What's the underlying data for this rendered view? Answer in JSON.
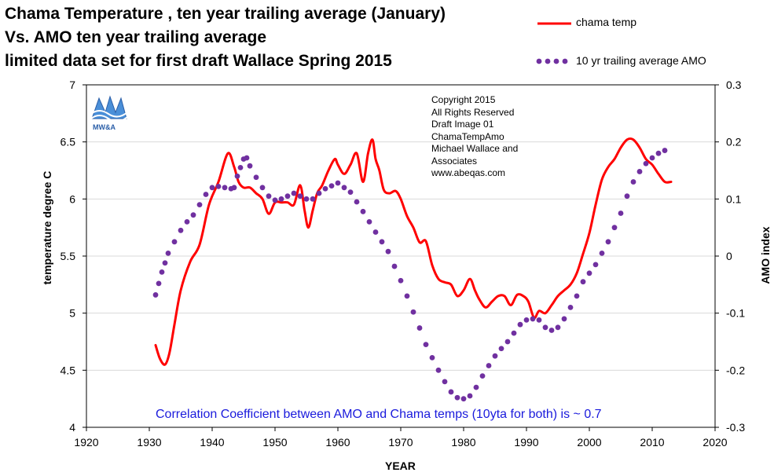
{
  "title": {
    "line1": "Chama Temperature , ten year  trailing average (January)",
    "line2": "Vs. AMO ten year trailing average",
    "line3": "limited data set for first draft   Wallace Spring 2015"
  },
  "legend": {
    "temp_label": "chama temp",
    "amo_label": "10 yr trailing average AMO"
  },
  "copyright": {
    "lines": [
      "Copyright  2015",
      "All Rights Reserved",
      "Draft Image 01",
      "ChamaTempAmo",
      "Michael Wallace and",
      "Associates",
      "www.abeqas.com"
    ]
  },
  "logo": {
    "text": "MW&A"
  },
  "annotation": "Correlation Coefficient between AMO and Chama temps (10yta for both) is ~ 0.7",
  "colors": {
    "temp": "#ff0000",
    "amo": "#7030a0",
    "annotation": "#1a1adc",
    "grid": "#d9d9d9",
    "logo": "#2a5ea8"
  },
  "chart_data": {
    "type": "line",
    "title": "Chama Temperature , ten year  trailing average (January) Vs. AMO ten year trailing average",
    "xlabel": "YEAR",
    "ylabel": "temperature degree C",
    "y2label": "AMO index",
    "xlim": [
      1920,
      2020
    ],
    "ylim": [
      4,
      7
    ],
    "y2lim": [
      -0.3,
      0.3
    ],
    "xticks": [
      "1920",
      "1930",
      "1940",
      "1950",
      "1960",
      "1970",
      "1980",
      "1990",
      "2000",
      "2010",
      "2020"
    ],
    "yticks": [
      "4",
      "4.5",
      "5",
      "5.5",
      "6",
      "6.5",
      "7"
    ],
    "y2ticks": [
      "-0.3",
      "-0.2",
      "-0.1",
      "0",
      "0.1",
      "0.2",
      "0.3"
    ],
    "legend_position": "top-right",
    "series": [
      {
        "name": "chama temp",
        "axis": "left",
        "style": "solid",
        "x": [
          1931,
          1931.7,
          1932.5,
          1933.2,
          1934,
          1935,
          1936.5,
          1938,
          1939.5,
          1941,
          1942.5,
          1943.5,
          1944.2,
          1945,
          1946,
          1947,
          1948,
          1949,
          1950,
          1951,
          1952,
          1953,
          1954,
          1954.7,
          1955.3,
          1956,
          1956.7,
          1957.5,
          1958.5,
          1959.5,
          1960,
          1961,
          1962,
          1963,
          1964,
          1964.8,
          1965.5,
          1966,
          1966.6,
          1967.3,
          1968.2,
          1969.2,
          1970,
          1971,
          1972,
          1973,
          1974,
          1975,
          1976,
          1977,
          1978,
          1979,
          1980,
          1981,
          1981.8,
          1982.5,
          1983.5,
          1984.5,
          1985.5,
          1986.5,
          1987.5,
          1988.5,
          1989.5,
          1990.3,
          1991.2,
          1992,
          1993,
          1994,
          1995,
          1996,
          1997,
          1998,
          1999,
          2000,
          2001,
          2002,
          2003,
          2004,
          2005,
          2006,
          2007,
          2008,
          2009,
          2010,
          2011,
          2012,
          2013
        ],
        "y": [
          4.72,
          4.6,
          4.55,
          4.65,
          4.9,
          5.2,
          5.45,
          5.6,
          5.95,
          6.15,
          6.4,
          6.28,
          6.15,
          6.1,
          6.1,
          6.05,
          6.0,
          5.87,
          5.97,
          5.97,
          5.97,
          5.95,
          6.12,
          5.9,
          5.75,
          5.9,
          6.05,
          6.12,
          6.25,
          6.35,
          6.3,
          6.22,
          6.3,
          6.4,
          6.15,
          6.4,
          6.52,
          6.35,
          6.25,
          6.08,
          6.05,
          6.07,
          6.0,
          5.85,
          5.75,
          5.62,
          5.63,
          5.42,
          5.3,
          5.27,
          5.25,
          5.15,
          5.2,
          5.3,
          5.2,
          5.12,
          5.05,
          5.1,
          5.15,
          5.15,
          5.07,
          5.16,
          5.15,
          5.1,
          4.96,
          5.02,
          5.0,
          5.07,
          5.15,
          5.2,
          5.25,
          5.35,
          5.52,
          5.7,
          5.95,
          6.17,
          6.28,
          6.35,
          6.45,
          6.52,
          6.52,
          6.45,
          6.35,
          6.3,
          6.22,
          6.15,
          6.15
        ]
      },
      {
        "name": "10 yr trailing average AMO",
        "axis": "right",
        "style": "dotted",
        "x": [
          1931,
          1931.5,
          1932,
          1932.5,
          1933,
          1934,
          1935,
          1936,
          1937,
          1938,
          1939,
          1940,
          1941,
          1942,
          1943,
          1943.5,
          1944,
          1944.5,
          1945,
          1945.5,
          1946,
          1947,
          1948,
          1949,
          1950,
          1951,
          1952,
          1953,
          1954,
          1955,
          1956,
          1957,
          1958,
          1959,
          1960,
          1961,
          1962,
          1963,
          1964,
          1965,
          1966,
          1967,
          1968,
          1969,
          1970,
          1971,
          1972,
          1973,
          1974,
          1975,
          1976,
          1977,
          1978,
          1979,
          1980,
          1981,
          1982,
          1983,
          1984,
          1985,
          1986,
          1987,
          1988,
          1989,
          1990,
          1991,
          1992,
          1993,
          1994,
          1995,
          1996,
          1997,
          1998,
          1999,
          2000,
          2001,
          2002,
          2003,
          2004,
          2005,
          2006,
          2007,
          2008,
          2009,
          2010,
          2011,
          2012
        ],
        "y": [
          -0.068,
          -0.048,
          -0.028,
          -0.012,
          0.005,
          0.025,
          0.045,
          0.06,
          0.072,
          0.09,
          0.108,
          0.12,
          0.122,
          0.12,
          0.118,
          0.12,
          0.14,
          0.155,
          0.17,
          0.172,
          0.158,
          0.138,
          0.12,
          0.105,
          0.098,
          0.1,
          0.105,
          0.11,
          0.105,
          0.1,
          0.1,
          0.11,
          0.118,
          0.123,
          0.128,
          0.12,
          0.112,
          0.095,
          0.078,
          0.06,
          0.042,
          0.025,
          0.008,
          -0.018,
          -0.043,
          -0.07,
          -0.098,
          -0.126,
          -0.155,
          -0.178,
          -0.2,
          -0.22,
          -0.238,
          -0.248,
          -0.25,
          -0.245,
          -0.23,
          -0.21,
          -0.192,
          -0.175,
          -0.162,
          -0.15,
          -0.135,
          -0.12,
          -0.112,
          -0.11,
          -0.112,
          -0.125,
          -0.13,
          -0.125,
          -0.11,
          -0.09,
          -0.07,
          -0.045,
          -0.03,
          -0.015,
          0.005,
          0.025,
          0.05,
          0.075,
          0.105,
          0.13,
          0.148,
          0.162,
          0.172,
          0.18,
          0.185
        ]
      }
    ]
  }
}
